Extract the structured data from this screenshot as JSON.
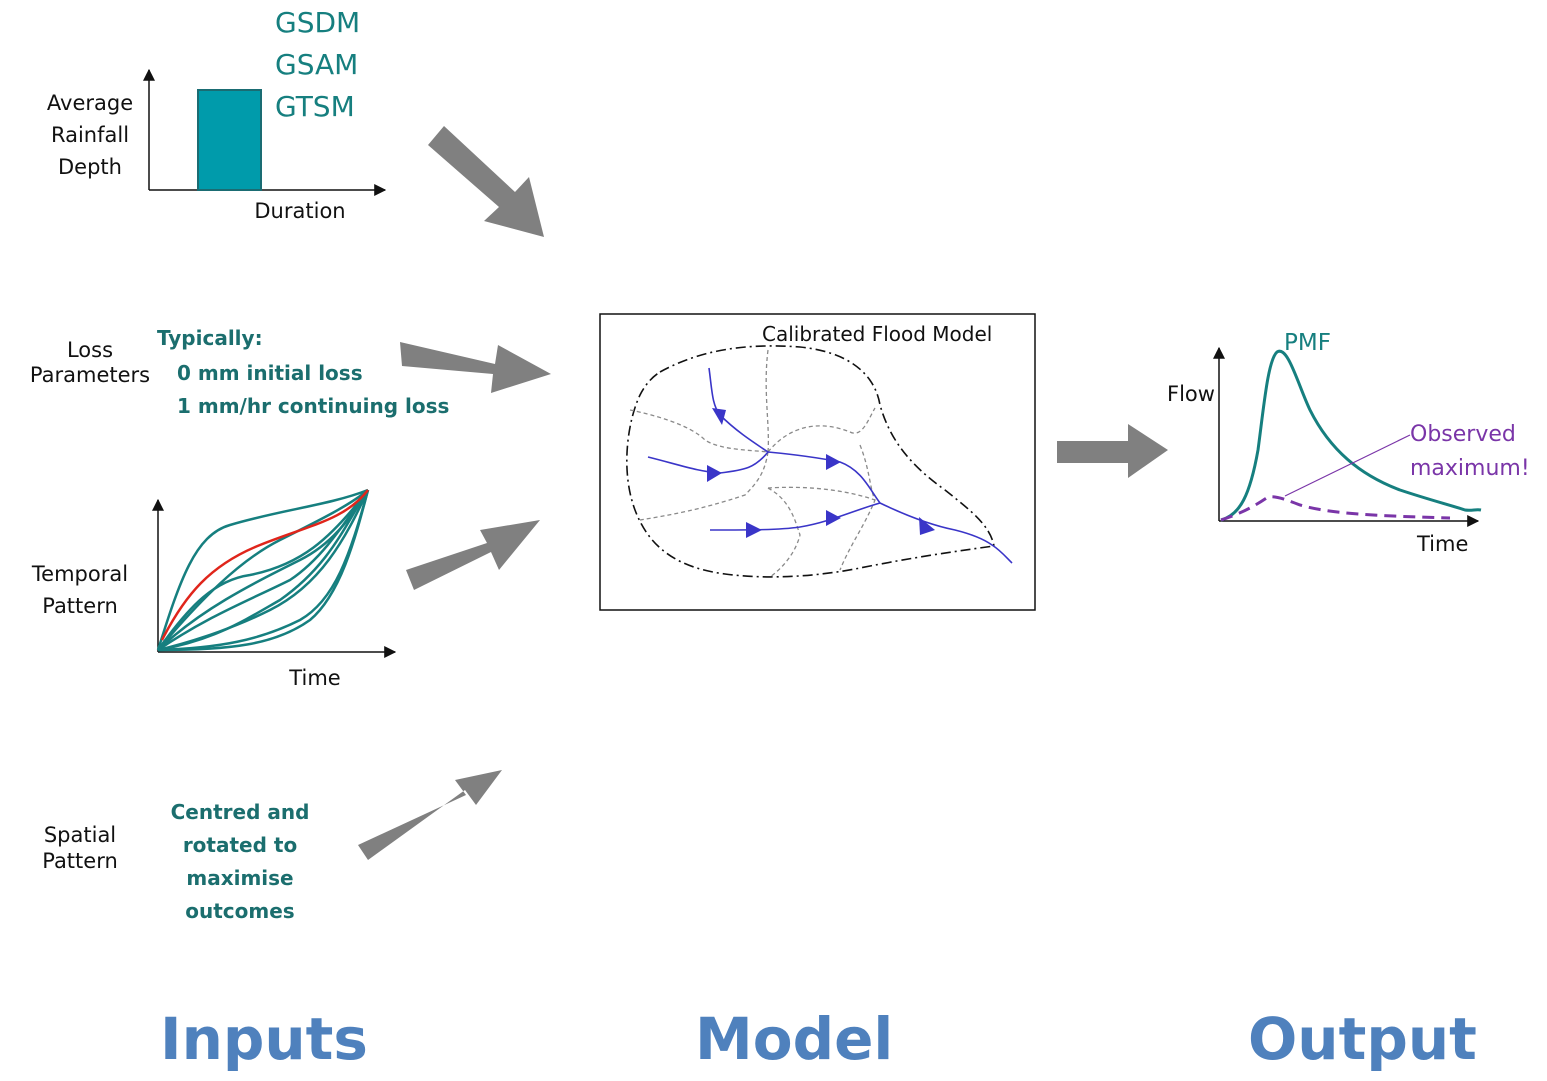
{
  "colors": {
    "teal": "#167f7f",
    "bar_fill": "#009bab",
    "red": "#e0251b",
    "stream_blue": "#3a35c8",
    "purple": "#7a35a8",
    "arrow_gray": "#808080",
    "heading_blue": "#4f81bd"
  },
  "rainfall": {
    "models": [
      "GSDM",
      "GSAM",
      "GTSM"
    ],
    "y_label": [
      "Average",
      "Rainfall",
      "Depth"
    ],
    "x_label": "Duration"
  },
  "loss": {
    "label": [
      "Loss",
      "Parameters"
    ],
    "heading": "Typically:",
    "items": [
      "0 mm initial loss",
      "1 mm/hr continuing loss"
    ]
  },
  "temporal": {
    "label": [
      "Temporal",
      "Pattern"
    ],
    "x_label": "Time"
  },
  "spatial": {
    "label": [
      "Spatial",
      "Pattern"
    ],
    "note": [
      "Centred and",
      "rotated to",
      "maximise",
      "outcomes"
    ]
  },
  "model": {
    "box_title": "Calibrated Flood Model"
  },
  "output": {
    "y_label": "Flow",
    "x_label": "Time",
    "pmf_label": "PMF",
    "observed_label": [
      "Observed",
      "maximum!"
    ]
  },
  "headings": {
    "inputs": "Inputs",
    "model": "Model",
    "output": "Output"
  },
  "icons": [
    "input-arrow-icon",
    "output-arrow-icon",
    "stream-arrowhead-icon"
  ]
}
